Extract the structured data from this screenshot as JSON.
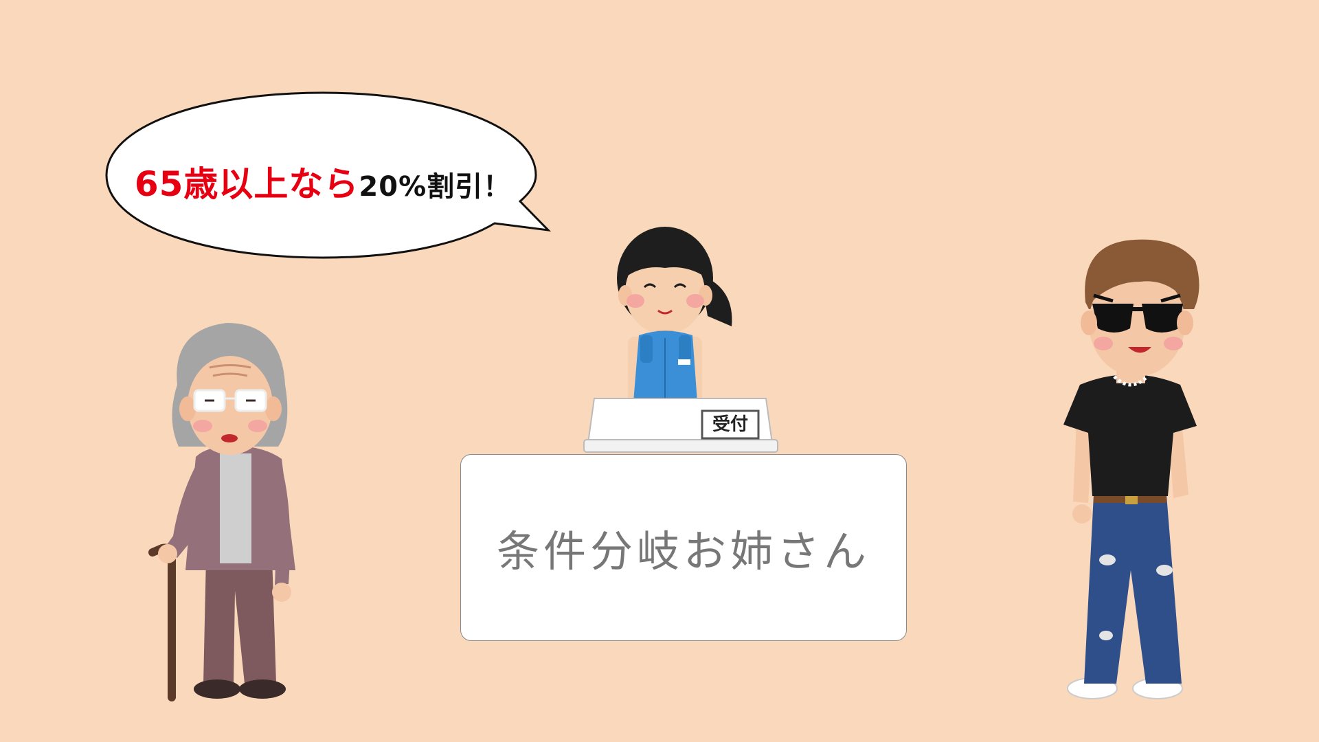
{
  "speech_bubble": {
    "highlight_text": "65歳以上なら",
    "rest_text": "20%割引！"
  },
  "counter_sign": "受付",
  "label": "条件分岐お姉さん",
  "colors": {
    "background": "#f9d8bc",
    "highlight": "#e60012",
    "label_text": "#777777"
  },
  "characters": [
    "elderly-woman-icon",
    "receptionist-icon",
    "punk-man-icon"
  ]
}
